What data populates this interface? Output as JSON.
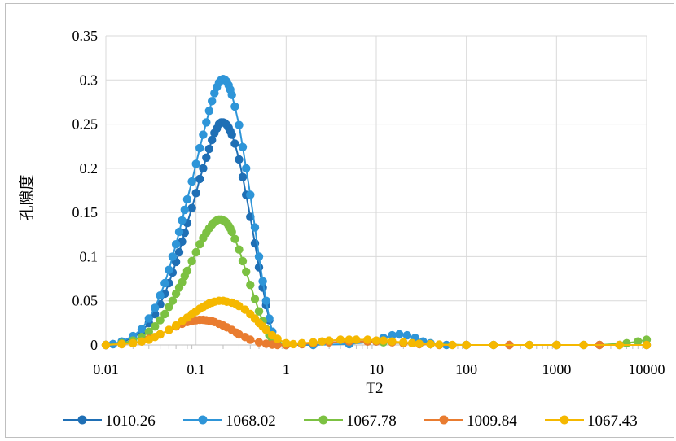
{
  "chart_data": {
    "type": "line",
    "title": "",
    "xlabel": "T2",
    "ylabel": "孔隙度",
    "x_scale": "log",
    "xlim": [
      0.01,
      10000
    ],
    "ylim": [
      0,
      0.35
    ],
    "x_ticks": [
      "0.01",
      "0.1",
      "1",
      "10",
      "100",
      "1000",
      "10000"
    ],
    "y_ticks": [
      "0",
      "0.05",
      "0.1",
      "0.15",
      "0.2",
      "0.25",
      "0.3",
      "0.35"
    ],
    "grid": true,
    "legend_position": "bottom",
    "series": [
      {
        "name": "1010.26",
        "color": "#1f6fb5",
        "x": [
          0.01,
          0.012,
          0.015,
          0.02,
          0.025,
          0.03,
          0.035,
          0.04,
          0.045,
          0.05,
          0.055,
          0.06,
          0.065,
          0.07,
          0.075,
          0.08,
          0.09,
          0.1,
          0.11,
          0.12,
          0.13,
          0.14,
          0.15,
          0.16,
          0.17,
          0.18,
          0.19,
          0.2,
          0.21,
          0.22,
          0.23,
          0.24,
          0.25,
          0.27,
          0.3,
          0.33,
          0.36,
          0.4,
          0.45,
          0.5,
          0.55,
          0.6,
          0.65,
          0.7,
          0.75,
          0.8
        ],
        "y": [
          0,
          0.001,
          0.003,
          0.008,
          0.015,
          0.025,
          0.035,
          0.046,
          0.058,
          0.07,
          0.082,
          0.094,
          0.105,
          0.117,
          0.127,
          0.138,
          0.155,
          0.172,
          0.188,
          0.2,
          0.212,
          0.222,
          0.232,
          0.24,
          0.245,
          0.25,
          0.252,
          0.252,
          0.251,
          0.249,
          0.246,
          0.242,
          0.238,
          0.228,
          0.21,
          0.19,
          0.17,
          0.145,
          0.115,
          0.088,
          0.065,
          0.045,
          0.028,
          0.015,
          0.006,
          0.001
        ]
      },
      {
        "name": "1068.02",
        "color": "#2e95d8",
        "x": [
          0.01,
          0.012,
          0.015,
          0.02,
          0.025,
          0.03,
          0.035,
          0.04,
          0.045,
          0.05,
          0.055,
          0.06,
          0.065,
          0.07,
          0.075,
          0.08,
          0.09,
          0.1,
          0.11,
          0.12,
          0.13,
          0.14,
          0.15,
          0.16,
          0.17,
          0.18,
          0.19,
          0.2,
          0.21,
          0.22,
          0.23,
          0.24,
          0.25,
          0.27,
          0.3,
          0.33,
          0.36,
          0.4,
          0.45,
          0.5,
          0.55,
          0.6,
          0.65,
          0.7,
          0.75,
          0.8,
          1,
          2,
          5,
          10,
          12,
          15,
          18,
          22,
          27,
          33,
          40,
          60,
          100,
          200,
          500,
          1000,
          2000,
          5000,
          10000
        ],
        "y": [
          0,
          0.001,
          0.004,
          0.01,
          0.018,
          0.03,
          0.042,
          0.056,
          0.07,
          0.085,
          0.1,
          0.114,
          0.128,
          0.141,
          0.153,
          0.165,
          0.185,
          0.205,
          0.223,
          0.238,
          0.252,
          0.265,
          0.276,
          0.285,
          0.292,
          0.297,
          0.3,
          0.301,
          0.3,
          0.298,
          0.294,
          0.289,
          0.283,
          0.27,
          0.249,
          0.224,
          0.2,
          0.17,
          0.133,
          0.1,
          0.072,
          0.05,
          0.03,
          0.015,
          0.006,
          0.001,
          0,
          0,
          0.001,
          0.004,
          0.008,
          0.011,
          0.012,
          0.011,
          0.008,
          0.004,
          0.002,
          0,
          0,
          0,
          0,
          0,
          0,
          0,
          0
        ]
      },
      {
        "name": "1067.78",
        "color": "#7cc142",
        "x": [
          0.01,
          0.015,
          0.02,
          0.025,
          0.03,
          0.035,
          0.04,
          0.045,
          0.05,
          0.055,
          0.06,
          0.065,
          0.07,
          0.075,
          0.08,
          0.09,
          0.1,
          0.11,
          0.12,
          0.13,
          0.14,
          0.15,
          0.16,
          0.17,
          0.18,
          0.19,
          0.2,
          0.21,
          0.22,
          0.23,
          0.24,
          0.25,
          0.27,
          0.3,
          0.33,
          0.36,
          0.4,
          0.45,
          0.5,
          0.55,
          0.6,
          0.65,
          0.7,
          0.8,
          1,
          1.5,
          2,
          3,
          5,
          8,
          12,
          20,
          40,
          100,
          300,
          1000,
          3000,
          6000,
          8000,
          10000
        ],
        "y": [
          0,
          0.002,
          0.005,
          0.009,
          0.015,
          0.021,
          0.028,
          0.035,
          0.043,
          0.05,
          0.058,
          0.065,
          0.071,
          0.078,
          0.084,
          0.095,
          0.105,
          0.114,
          0.121,
          0.127,
          0.132,
          0.136,
          0.139,
          0.141,
          0.142,
          0.142,
          0.141,
          0.14,
          0.138,
          0.135,
          0.132,
          0.128,
          0.12,
          0.108,
          0.095,
          0.083,
          0.068,
          0.052,
          0.038,
          0.027,
          0.018,
          0.011,
          0.006,
          0.002,
          0,
          0.001,
          0.002,
          0.003,
          0.004,
          0.004,
          0.003,
          0.002,
          0.001,
          0,
          0,
          0,
          0,
          0.002,
          0.004,
          0.006
        ]
      },
      {
        "name": "1009.84",
        "color": "#e97c30",
        "x": [
          0.01,
          0.015,
          0.02,
          0.025,
          0.03,
          0.04,
          0.05,
          0.06,
          0.07,
          0.08,
          0.09,
          0.1,
          0.11,
          0.12,
          0.13,
          0.14,
          0.15,
          0.16,
          0.18,
          0.2,
          0.22,
          0.25,
          0.28,
          0.3,
          0.35,
          0.4,
          0.5,
          0.6,
          0.7,
          0.8,
          1,
          1.5,
          2,
          3,
          5,
          8,
          10,
          15,
          20,
          30,
          50,
          100,
          300,
          1000,
          3000,
          10000
        ],
        "y": [
          0,
          0.001,
          0.002,
          0.004,
          0.007,
          0.012,
          0.017,
          0.021,
          0.024,
          0.026,
          0.027,
          0.028,
          0.0285,
          0.0285,
          0.028,
          0.0275,
          0.027,
          0.026,
          0.024,
          0.022,
          0.02,
          0.017,
          0.014,
          0.012,
          0.009,
          0.006,
          0.003,
          0.0015,
          0.0005,
          0,
          0,
          0.001,
          0.002,
          0.003,
          0.004,
          0.004,
          0.004,
          0.003,
          0.002,
          0.001,
          0,
          0,
          0,
          0,
          0,
          0
        ]
      },
      {
        "name": "1067.43",
        "color": "#f5b800",
        "x": [
          0.01,
          0.015,
          0.02,
          0.025,
          0.03,
          0.035,
          0.04,
          0.05,
          0.06,
          0.07,
          0.08,
          0.09,
          0.1,
          0.11,
          0.12,
          0.13,
          0.14,
          0.15,
          0.16,
          0.18,
          0.2,
          0.22,
          0.25,
          0.28,
          0.3,
          0.35,
          0.4,
          0.45,
          0.5,
          0.55,
          0.6,
          0.7,
          0.8,
          1,
          1.2,
          1.5,
          2,
          2.5,
          3,
          4,
          5,
          6,
          8,
          10,
          12,
          15,
          20,
          25,
          30,
          40,
          50,
          70,
          100,
          200,
          500,
          1000,
          2000,
          5000,
          10000
        ],
        "y": [
          0,
          0.001,
          0.002,
          0.004,
          0.006,
          0.009,
          0.012,
          0.017,
          0.022,
          0.027,
          0.031,
          0.035,
          0.038,
          0.041,
          0.043,
          0.045,
          0.047,
          0.048,
          0.049,
          0.05,
          0.05,
          0.049,
          0.048,
          0.046,
          0.044,
          0.04,
          0.035,
          0.03,
          0.025,
          0.021,
          0.017,
          0.011,
          0.007,
          0.002,
          0.001,
          0.002,
          0.003,
          0.004,
          0.005,
          0.006,
          0.006,
          0.006,
          0.006,
          0.005,
          0.005,
          0.004,
          0.003,
          0.002,
          0.0015,
          0.001,
          0.0005,
          0,
          0,
          0,
          0,
          0,
          0,
          0,
          0
        ]
      }
    ]
  }
}
